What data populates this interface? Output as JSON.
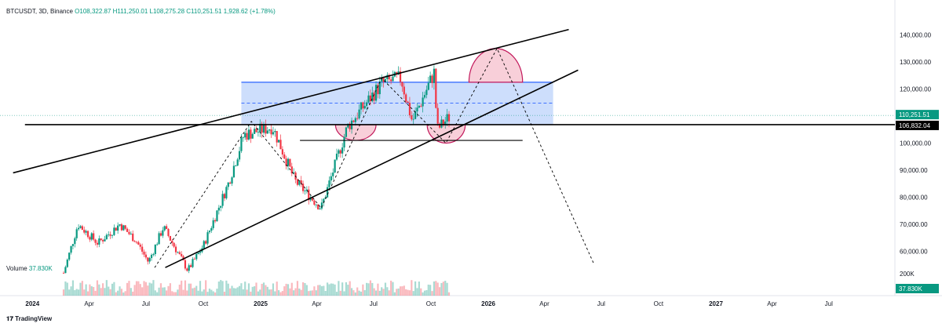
{
  "header": {
    "symbol": "BTCUSDT, 3D, Binance",
    "open": "O108,322.87",
    "high": "H111,250.01",
    "low": "L108,275.28",
    "close": "C110,251.51",
    "change": "1,928.62 (+1.78%)"
  },
  "volume_label": {
    "name": "Volume",
    "value": "37.830K"
  },
  "footer": {
    "logo_text": "TradingView"
  },
  "price_badges": {
    "last_price": "110,251.51",
    "level": "106,832.04",
    "volume": "37.830K"
  },
  "colors": {
    "up": "#089981",
    "down": "#f23645",
    "zone_fill": "#bcd3fb",
    "zone_border": "#2962ff",
    "arc_fill": "#f6c3cf",
    "arc_border": "#c2185b",
    "line": "#000000"
  },
  "chart_data": {
    "type": "candlestick",
    "y_axis_ticks": [
      "140,000.00",
      "130,000.00",
      "120,000.00",
      "110,000.00",
      "100,000.00",
      "90,000.00",
      "80,000.00",
      "70,000.00",
      "60,000.00"
    ],
    "volume_axis_tick": "200K",
    "x_axis_ticks": [
      "2024",
      "Apr",
      "Jul",
      "Oct",
      "2025",
      "Apr",
      "Jul",
      "Oct",
      "2026",
      "Apr",
      "Jul",
      "Oct",
      "2027",
      "Apr",
      "Jul"
    ],
    "ylim": [
      50000,
      150000
    ],
    "price_path": [
      [
        "2024-02-20",
        52000
      ],
      [
        "2024-03-14",
        70000
      ],
      [
        "2024-04-15",
        63000
      ],
      [
        "2024-05-20",
        70000
      ],
      [
        "2024-06-15",
        64000
      ],
      [
        "2024-07-05",
        56000
      ],
      [
        "2024-07-29",
        69000
      ],
      [
        "2024-09-06",
        53000
      ],
      [
        "2024-10-01",
        62000
      ],
      [
        "2024-11-10",
        85000
      ],
      [
        "2024-12-05",
        103000
      ],
      [
        "2025-01-20",
        106000
      ],
      [
        "2025-02-25",
        86000
      ],
      [
        "2025-04-08",
        76000
      ],
      [
        "2025-05-20",
        106000
      ],
      [
        "2025-07-14",
        122000
      ],
      [
        "2025-08-14",
        124000
      ],
      [
        "2025-09-01",
        108000
      ],
      [
        "2025-10-06",
        126000
      ],
      [
        "2025-10-11",
        105000
      ],
      [
        "2025-11-01",
        110000
      ]
    ],
    "projection": [
      [
        "2024-07-15",
        54000
      ],
      [
        "2024-12-17",
        108000
      ],
      [
        "2025-04-08",
        76000
      ],
      [
        "2025-07-14",
        124000
      ],
      [
        "2025-10-25",
        100000
      ],
      [
        "2026-01-15",
        135000
      ],
      [
        "2026-06-20",
        55000
      ]
    ],
    "resistance_zone": {
      "top": 122500,
      "bottom": 106800,
      "mid": 114800,
      "from": "2024-12-01",
      "to": "2026-04-15"
    },
    "support_line": {
      "level": 106832.04,
      "from": "2023-11-10",
      "to": "2027-12-31"
    },
    "channel_upper": [
      [
        "2023-12-01",
        89000
      ],
      [
        "2026-05-10",
        142000
      ]
    ],
    "channel_lower": [
      [
        "2024-08-01",
        54000
      ],
      [
        "2026-05-25",
        127000
      ]
    ],
    "neckline": {
      "level": 101000,
      "from": "2025-03-05",
      "to": "2026-02-25"
    },
    "arcs": [
      {
        "from": "2025-05-01",
        "to": "2025-07-05",
        "top": 106800,
        "bottom": 101000
      },
      {
        "from": "2025-09-25",
        "to": "2025-11-25",
        "top": 106800,
        "bottom": 100000
      },
      {
        "from": "2025-12-01",
        "to": "2026-02-25",
        "top": 135000,
        "bottom": 122500
      }
    ]
  }
}
